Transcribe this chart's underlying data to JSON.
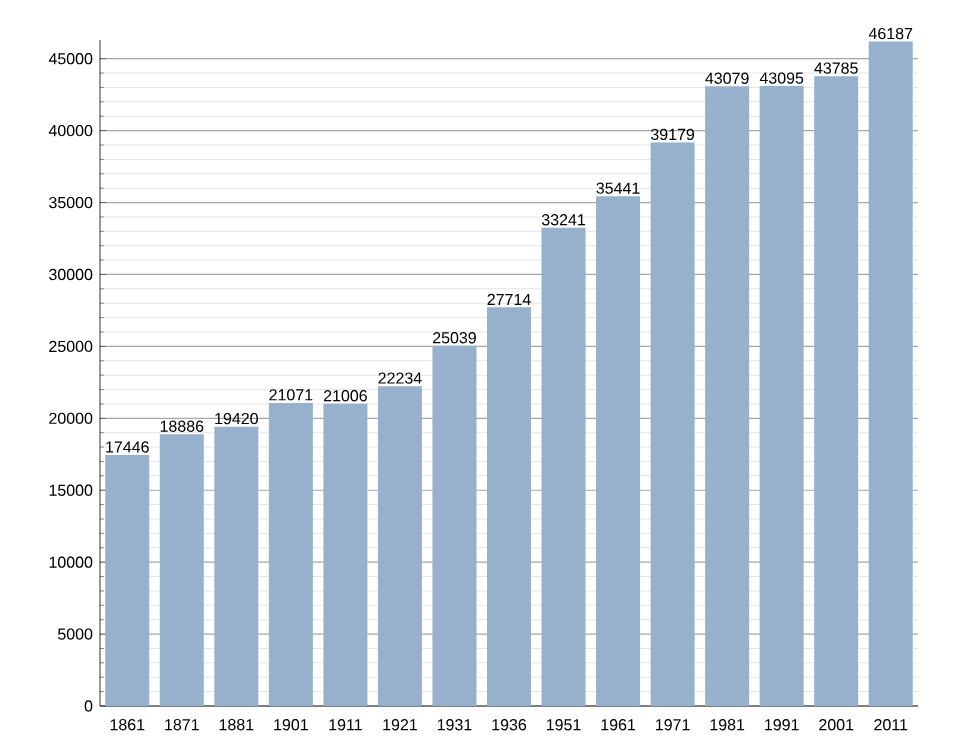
{
  "chart_data": {
    "type": "bar",
    "categories": [
      "1861",
      "1871",
      "1881",
      "1901",
      "1911",
      "1921",
      "1931",
      "1936",
      "1951",
      "1961",
      "1971",
      "1981",
      "1991",
      "2001",
      "2011"
    ],
    "values": [
      17446,
      18886,
      19420,
      21071,
      21006,
      22234,
      25039,
      27714,
      33241,
      35441,
      39179,
      43079,
      43095,
      43785,
      46187
    ],
    "color": "#97b0cc",
    "data_labels": true,
    "grid": "y",
    "ylim": [
      0,
      46300
    ],
    "yticks": [
      0,
      5000,
      10000,
      15000,
      20000,
      25000,
      30000,
      35000,
      40000,
      45000
    ]
  }
}
